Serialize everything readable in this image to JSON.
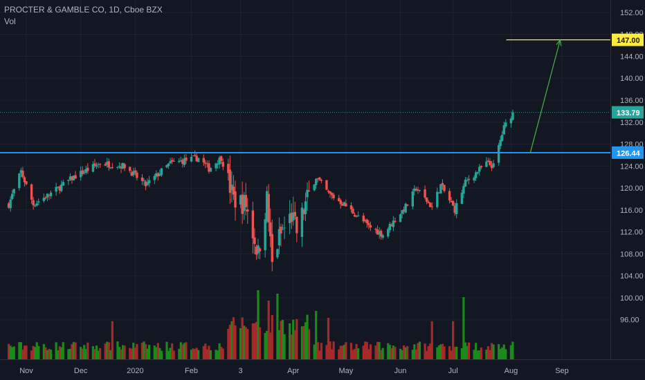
{
  "header": {
    "symbol_line": "PROCTER & GAMBLE CO, 1D, Cboe BZX",
    "volume_label": "Vol"
  },
  "colors": {
    "background": "#131722",
    "grid": "#1e2230",
    "up": "#26a69a",
    "down": "#ef5350",
    "vol_up": "#1b8a1b",
    "vol_down": "#a52a2a",
    "resistance": "#2196f3",
    "target": "#ffeb3b",
    "arrow": "#4caf50",
    "last_price": "#26a69a"
  },
  "chart_data": {
    "type": "candlestick",
    "title": "PROCTER & GAMBLE CO, 1D, Cboe BZX",
    "y_ticks": [
      152,
      148,
      144,
      140,
      136,
      132,
      128,
      124,
      120,
      116,
      112,
      108,
      104,
      100,
      96
    ],
    "ylim": [
      90.8,
      153.0
    ],
    "x_tick_labels": [
      {
        "label": "Nov",
        "date": "2019-11-01"
      },
      {
        "label": "Dec",
        "date": "2019-12-02"
      },
      {
        "label": "2020",
        "date": "2020-01-02"
      },
      {
        "label": "Feb",
        "date": "2020-02-03"
      },
      {
        "label": "3",
        "date": "2020-03-02"
      },
      {
        "label": "Apr",
        "date": "2020-04-01"
      },
      {
        "label": "May",
        "date": "2020-05-01"
      },
      {
        "label": "Jun",
        "date": "2020-06-01"
      },
      {
        "label": "Jul",
        "date": "2020-07-01"
      },
      {
        "label": "Aug",
        "date": "2020-08-03"
      },
      {
        "label": "Sep",
        "date": "2020-09-01"
      }
    ],
    "anchors": [
      {
        "date": "2019-10-22",
        "price": 117
      },
      {
        "date": "2019-10-29",
        "price": 123
      },
      {
        "date": "2019-11-05",
        "price": 117
      },
      {
        "date": "2019-11-15",
        "price": 119
      },
      {
        "date": "2019-11-28",
        "price": 122
      },
      {
        "date": "2019-12-13",
        "price": 124.5
      },
      {
        "date": "2019-12-27",
        "price": 124
      },
      {
        "date": "2020-01-08",
        "price": 120.5
      },
      {
        "date": "2020-01-22",
        "price": 124.5
      },
      {
        "date": "2020-02-07",
        "price": 125.5
      },
      {
        "date": "2020-02-13",
        "price": 123.5
      },
      {
        "date": "2020-02-20",
        "price": 125.5
      },
      {
        "date": "2020-02-27",
        "price": 118
      },
      {
        "date": "2020-03-05",
        "price": 117
      },
      {
        "date": "2020-03-12",
        "price": 108
      },
      {
        "date": "2020-03-17",
        "price": 118
      },
      {
        "date": "2020-03-20",
        "price": 106
      },
      {
        "date": "2020-03-24",
        "price": 111
      },
      {
        "date": "2020-03-31",
        "price": 115
      },
      {
        "date": "2020-04-03",
        "price": 112
      },
      {
        "date": "2020-04-09",
        "price": 118
      },
      {
        "date": "2020-04-14",
        "price": 122
      },
      {
        "date": "2020-04-21",
        "price": 119
      },
      {
        "date": "2020-04-30",
        "price": 117
      },
      {
        "date": "2020-05-14",
        "price": 113
      },
      {
        "date": "2020-05-22",
        "price": 111.5
      },
      {
        "date": "2020-06-05",
        "price": 117
      },
      {
        "date": "2020-06-10",
        "price": 120
      },
      {
        "date": "2020-06-19",
        "price": 116.5
      },
      {
        "date": "2020-06-24",
        "price": 120.5
      },
      {
        "date": "2020-07-02",
        "price": 116
      },
      {
        "date": "2020-07-08",
        "price": 121
      },
      {
        "date": "2020-07-20",
        "price": 124.5
      },
      {
        "date": "2020-07-24",
        "price": 124
      },
      {
        "date": "2020-07-30",
        "price": 131
      },
      {
        "date": "2020-08-04",
        "price": 133.79
      }
    ],
    "last_price": 133.79,
    "resistance": {
      "price": 126.44,
      "start_date": "2019-10-22",
      "label": "126.44"
    },
    "target": {
      "price": 147.0,
      "start_date": "2020-08-20",
      "label": "147.00"
    },
    "projection": {
      "from_date": "2020-08-14",
      "from_price": 126.44,
      "to_date": "2020-08-31",
      "to_price": 147.0
    },
    "last_label": "133.79",
    "volume_spikes": [
      {
        "date": "2020-02-26",
        "level": 0.55
      },
      {
        "date": "2020-03-02",
        "level": 0.45
      },
      {
        "date": "2020-03-12",
        "level": 1.0
      },
      {
        "date": "2020-03-18",
        "level": 0.85
      },
      {
        "date": "2020-03-23",
        "level": 0.95
      },
      {
        "date": "2020-04-14",
        "level": 0.7
      },
      {
        "date": "2020-04-21",
        "level": 0.6
      },
      {
        "date": "2020-06-19",
        "level": 0.55
      },
      {
        "date": "2020-07-01",
        "level": 0.55
      },
      {
        "date": "2020-07-07",
        "level": 0.9
      },
      {
        "date": "2019-12-20",
        "level": 0.55
      }
    ]
  }
}
